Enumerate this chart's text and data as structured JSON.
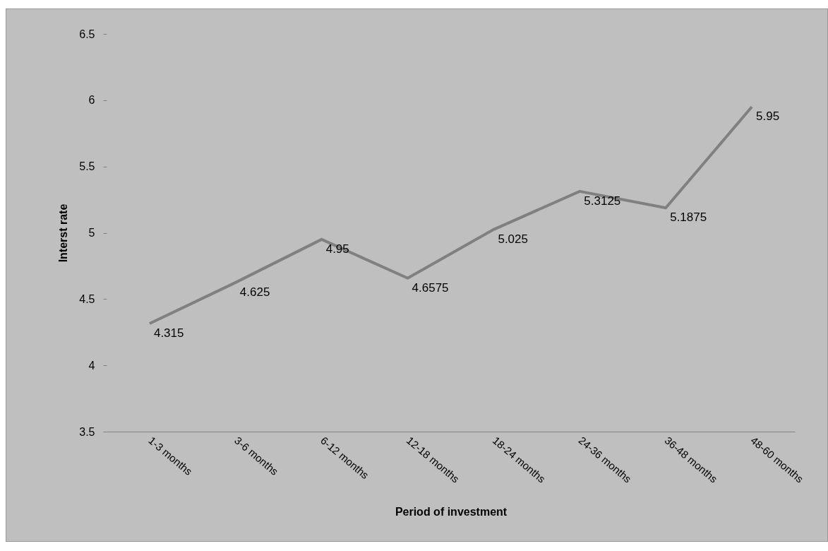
{
  "chart_data": {
    "type": "line",
    "xlabel": "Period of investment",
    "ylabel": "Interst rate",
    "categories": [
      "1-3 months",
      "3-6 months",
      "6-12 months",
      "12-18 months",
      "18-24 months",
      "24-36 months",
      "36-48 months",
      "48-60 months"
    ],
    "series": [
      {
        "color": "#808080",
        "values": [
          4.315,
          4.625,
          4.95,
          4.6575,
          5.025,
          5.3125,
          5.1875,
          5.95
        ]
      }
    ],
    "ylim": [
      3.5,
      6.5
    ],
    "yticks": [
      3.5,
      4,
      4.5,
      5,
      5.5,
      6,
      6.5
    ],
    "grid": false,
    "data_labels": true
  }
}
